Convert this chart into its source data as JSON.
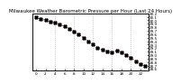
{
  "title": "Milwaukee Weather Barometric Pressure per Hour (Last 24 Hours)",
  "background_color": "#ffffff",
  "plot_bg_color": "#ffffff",
  "line_color": "#dd0000",
  "marker_color": "#000000",
  "grid_color": "#aaaaaa",
  "hours": [
    0,
    1,
    2,
    3,
    4,
    5,
    6,
    7,
    8,
    9,
    10,
    11,
    12,
    13,
    14,
    15,
    16,
    17,
    18,
    19,
    20,
    21,
    22,
    23
  ],
  "pressure": [
    30.08,
    30.04,
    30.0,
    29.97,
    29.93,
    29.88,
    29.83,
    29.76,
    29.68,
    29.6,
    29.5,
    29.4,
    29.3,
    29.22,
    29.15,
    29.1,
    29.08,
    29.12,
    29.08,
    29.0,
    28.92,
    28.83,
    28.75,
    28.68
  ],
  "ylim_min": 28.55,
  "ylim_max": 30.2,
  "title_fontsize": 4.0,
  "tick_fontsize": 3.0,
  "grid_hours": [
    4,
    8,
    12,
    16,
    20
  ],
  "yticks": [
    28.6,
    28.7,
    28.8,
    28.9,
    29.0,
    29.1,
    29.2,
    29.3,
    29.4,
    29.5,
    29.6,
    29.7,
    29.8,
    29.9,
    30.0,
    30.1,
    30.2
  ],
  "xtick_hours": [
    0,
    2,
    4,
    6,
    8,
    10,
    12,
    14,
    16,
    18,
    20,
    22
  ]
}
